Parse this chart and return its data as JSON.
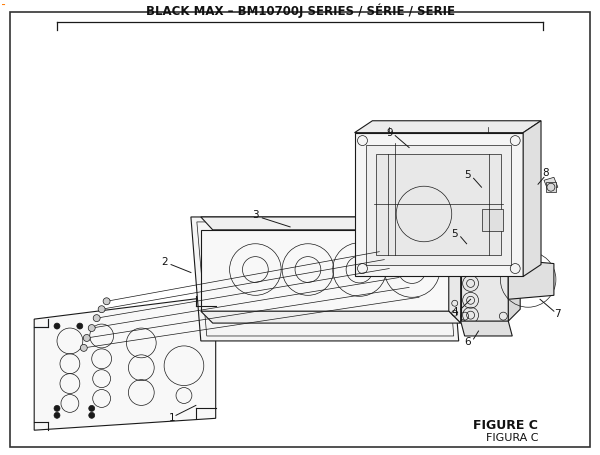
{
  "title": "BLACK MAX – BM10700J SERIES / SÉRIE / SERIE",
  "figure_label": "FIGURE C",
  "figura_label": "FIGURA C",
  "bg_color": "#ffffff",
  "line_color": "#1a1a1a",
  "title_fontsize": 8.5,
  "label_fontsize": 7.5,
  "figure_label_fontsize": 9
}
